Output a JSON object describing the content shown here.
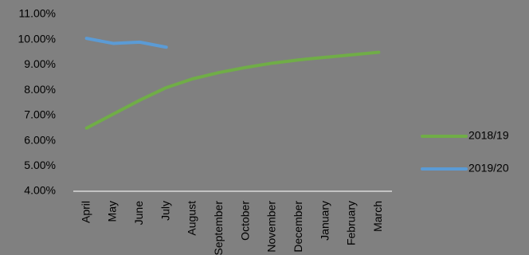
{
  "chart_data": {
    "type": "line",
    "categories": [
      "April",
      "May",
      "June",
      "July",
      "August",
      "September",
      "October",
      "November",
      "December",
      "January",
      "February",
      "March"
    ],
    "series": [
      {
        "name": "2018/19",
        "color": "#70ad47",
        "values": [
          6.5,
          7.05,
          7.6,
          8.1,
          8.45,
          8.7,
          8.9,
          9.07,
          9.2,
          9.3,
          9.4,
          9.5
        ]
      },
      {
        "name": "2019/20",
        "color": "#5b9bd5",
        "values": [
          10.05,
          9.85,
          9.9,
          9.7,
          null,
          null,
          null,
          null,
          null,
          null,
          null,
          null
        ]
      }
    ],
    "ylim": [
      4,
      11
    ],
    "yticks": [
      {
        "value": 4,
        "label": "4.00%"
      },
      {
        "value": 5,
        "label": "5.00%"
      },
      {
        "value": 6,
        "label": "6.00%"
      },
      {
        "value": 7,
        "label": "7.00%"
      },
      {
        "value": 8,
        "label": "8.00%"
      },
      {
        "value": 9,
        "label": "9.00%"
      },
      {
        "value": 10,
        "label": "10.00%"
      },
      {
        "value": 11,
        "label": "11.00%"
      }
    ],
    "grid": false,
    "legend": "right",
    "background": "#808080"
  }
}
